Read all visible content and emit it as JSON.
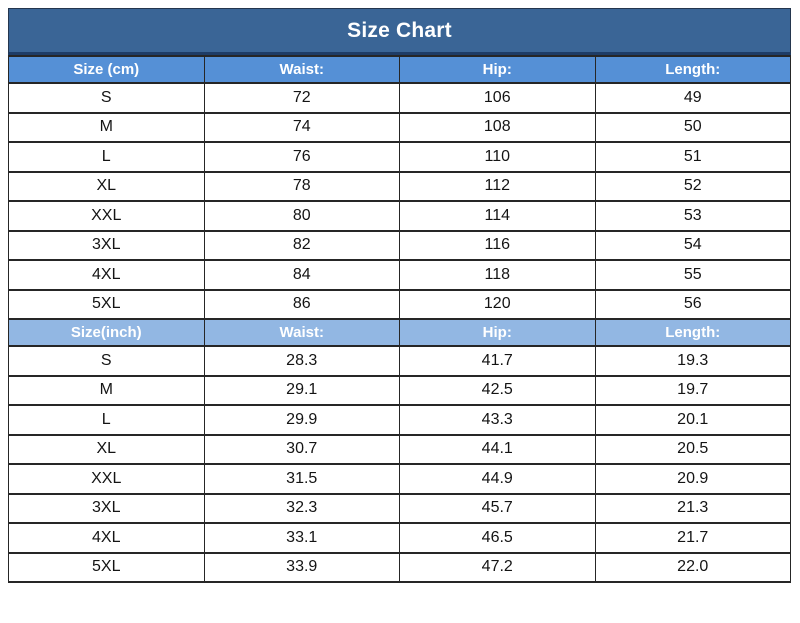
{
  "title": "Size Chart",
  "colors": {
    "title_bg": "#3A6596",
    "title_divider": "#1E3C66",
    "header_cm_bg": "#5590D6",
    "header_inch_bg": "#92B7E3",
    "header_text": "#FFFFFF",
    "cell_text": "#141414",
    "border": "#262626"
  },
  "chart_data": {
    "type": "table",
    "title": "Size Chart",
    "sections": [
      {
        "unit": "cm",
        "header": [
          "Size (cm)",
          "Waist:",
          "Hip:",
          "Length:"
        ],
        "rows": [
          [
            "S",
            "72",
            "106",
            "49"
          ],
          [
            "M",
            "74",
            "108",
            "50"
          ],
          [
            "L",
            "76",
            "110",
            "51"
          ],
          [
            "XL",
            "78",
            "112",
            "52"
          ],
          [
            "XXL",
            "80",
            "114",
            "53"
          ],
          [
            "3XL",
            "82",
            "116",
            "54"
          ],
          [
            "4XL",
            "84",
            "118",
            "55"
          ],
          [
            "5XL",
            "86",
            "120",
            "56"
          ]
        ]
      },
      {
        "unit": "inch",
        "header": [
          "Size(inch)",
          "Waist:",
          "Hip:",
          "Length:"
        ],
        "rows": [
          [
            "S",
            "28.3",
            "41.7",
            "19.3"
          ],
          [
            "M",
            "29.1",
            "42.5",
            "19.7"
          ],
          [
            "L",
            "29.9",
            "43.3",
            "20.1"
          ],
          [
            "XL",
            "30.7",
            "44.1",
            "20.5"
          ],
          [
            "XXL",
            "31.5",
            "44.9",
            "20.9"
          ],
          [
            "3XL",
            "32.3",
            "45.7",
            "21.3"
          ],
          [
            "4XL",
            "33.1",
            "46.5",
            "21.7"
          ],
          [
            "5XL",
            "33.9",
            "47.2",
            "22.0"
          ]
        ]
      }
    ]
  }
}
